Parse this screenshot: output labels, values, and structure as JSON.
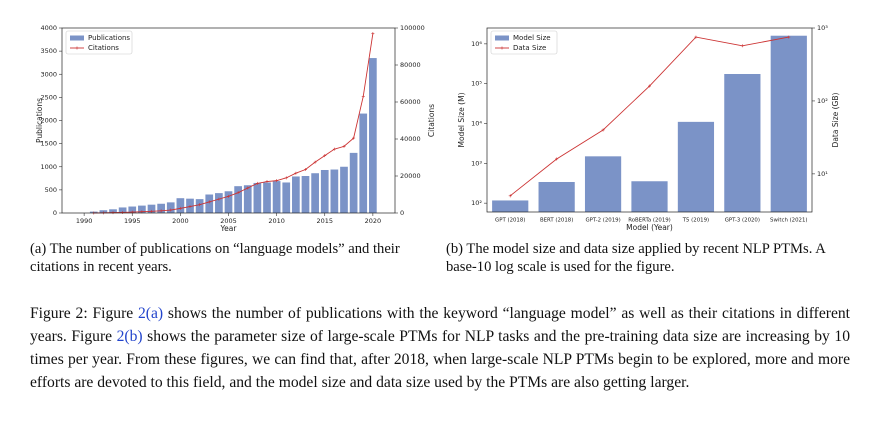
{
  "chart_data": [
    {
      "type": "combo",
      "xlabel": "Year",
      "ylabel": "Publications",
      "y2label": "Citations",
      "x": [
        1991,
        1992,
        1993,
        1994,
        1995,
        1996,
        1997,
        1998,
        1999,
        2000,
        2001,
        2002,
        2003,
        2004,
        2005,
        2006,
        2007,
        2008,
        2009,
        2010,
        2011,
        2012,
        2013,
        2014,
        2015,
        2016,
        2017,
        2018,
        2019,
        2020
      ],
      "xlim": [
        1987.7,
        2022.3
      ],
      "xticks": [
        1990,
        1995,
        2000,
        2005,
        2010,
        2015,
        2020
      ],
      "ylim": [
        0,
        4000
      ],
      "yticks": [
        0,
        500,
        1000,
        1500,
        2000,
        2500,
        3000,
        3500,
        4000
      ],
      "y2lim": [
        0,
        100000
      ],
      "y2ticks": [
        0,
        20000,
        40000,
        60000,
        80000,
        100000
      ],
      "legend": "upper left",
      "series": [
        {
          "name": "Publications",
          "kind": "bar",
          "color": "#7b93c7",
          "values": [
            30,
            60,
            80,
            120,
            140,
            160,
            180,
            200,
            230,
            320,
            310,
            300,
            400,
            430,
            470,
            580,
            600,
            650,
            660,
            690,
            660,
            790,
            800,
            860,
            930,
            940,
            1000,
            1300,
            2150,
            3350
          ]
        },
        {
          "name": "Citations",
          "kind": "line",
          "axis": "y2",
          "color": "#cc3333",
          "values": [
            0,
            100,
            200,
            300,
            500,
            700,
            900,
            1200,
            1600,
            2500,
            3500,
            4500,
            6000,
            7500,
            9000,
            11000,
            13500,
            16000,
            17000,
            17500,
            19000,
            21500,
            23500,
            27500,
            31000,
            34500,
            36000,
            40500,
            63000,
            97000
          ]
        }
      ]
    },
    {
      "type": "combo",
      "xlabel": "Model (Year)",
      "ylabel": "Model Size (M)",
      "y2label": "Data Size (GB)",
      "categories": [
        "GPT (2018)",
        "BERT (2018)",
        "GPT-2 (2019)",
        "RoBERTa (2019)",
        "T5 (2019)",
        "GPT-3 (2020)",
        "Switch (2021)"
      ],
      "ylog": true,
      "ylim": [
        60,
        2500000
      ],
      "yticks": [
        {
          "value": 100,
          "label": "10²"
        },
        {
          "value": 1000,
          "label": "10³"
        },
        {
          "value": 10000,
          "label": "10⁴"
        },
        {
          "value": 100000,
          "label": "10⁵"
        },
        {
          "value": 1000000,
          "label": "10⁶"
        }
      ],
      "y2log": true,
      "y2lim": [
        3,
        1000
      ],
      "y2ticks": [
        {
          "value": 10,
          "label": "10¹"
        },
        {
          "value": 100,
          "label": "10²"
        },
        {
          "value": 1000,
          "label": "10³"
        }
      ],
      "legend": "upper left",
      "series": [
        {
          "name": "Model Size",
          "kind": "bar",
          "color": "#7b93c7",
          "values": [
            117,
            340,
            1500,
            355,
            11000,
            175000,
            1600000
          ]
        },
        {
          "name": "Data Size",
          "kind": "line",
          "axis": "y2",
          "color": "#cc3333",
          "values": [
            5,
            16,
            40,
            160,
            750,
            570,
            750
          ]
        }
      ]
    }
  ],
  "captions": [
    "(a) The number of publications on “language models” and their citations in recent years.",
    "(b) The model size and data size applied by recent NLP PTMs. A base-10 log scale is used for the figure."
  ],
  "figure_caption": {
    "label": "Figure 2:",
    "parts": [
      " Figure ",
      "2(a)",
      " shows the number of publications with the keyword “language model” as well as their citations in different years. Figure ",
      "2(b)",
      " shows the parameter size of large-scale PTMs for NLP tasks and the pre-training data size are increasing by 10 times per year. From these figures, we can find that, after 2018, when large-scale NLP PTMs begin to be explored, more and more efforts are devoted to this field, and the model size and data size used by the PTMs are also getting larger."
    ]
  }
}
